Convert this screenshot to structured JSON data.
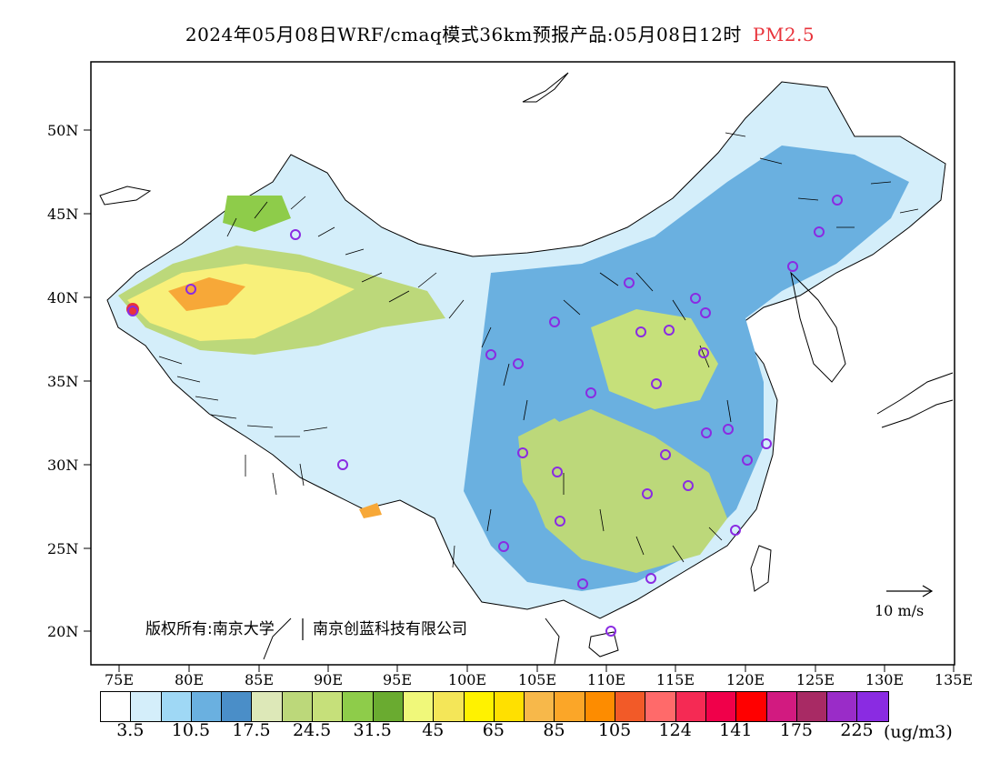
{
  "title": {
    "main": "2024年05月08日WRF/cmaq模式36km预报产品:05月08日12时",
    "pollutant": "PM2.5"
  },
  "axes": {
    "lat_labels": [
      "50N",
      "45N",
      "40N",
      "35N",
      "30N",
      "25N",
      "20N"
    ],
    "lon_labels": [
      "75E",
      "80E",
      "85E",
      "90E",
      "95E",
      "100E",
      "105E",
      "110E",
      "115E",
      "120E",
      "125E",
      "130E",
      "135E"
    ]
  },
  "wind_scale": {
    "label": "10 m/s"
  },
  "copyright": {
    "left": "版权所有:南京大学",
    "right": "南京创蓝科技有限公司"
  },
  "legend": {
    "colors": [
      "#ffffff",
      "#d4eefa",
      "#9fd8f5",
      "#6ab0e0",
      "#4a8ec8",
      "#dde8b8",
      "#bcd87a",
      "#c6e07a",
      "#8ecc4a",
      "#6aab30",
      "#f0f87a",
      "#f4e658",
      "#fff200",
      "#ffe000",
      "#f7b84a",
      "#fba628",
      "#fd8c00",
      "#f25a28",
      "#ff6a6a",
      "#f52a54",
      "#f0004a",
      "#ff0000",
      "#d21a80",
      "#a82a64",
      "#9a2cc8",
      "#8a2be2"
    ],
    "labels": [
      "3.5",
      "10.5",
      "17.5",
      "24.5",
      "31.5",
      "45",
      "65",
      "85",
      "105",
      "124",
      "141",
      "175",
      "225"
    ],
    "unit": "(ug/m3)"
  },
  "map_colors": {
    "ocean": "#ffffff",
    "low": "#d4eefa",
    "mid": "#6ab0e0",
    "green": "#bcd87a",
    "yellow": "#f8f07a",
    "orange": "#f7a838",
    "station": "#8a2be2"
  }
}
